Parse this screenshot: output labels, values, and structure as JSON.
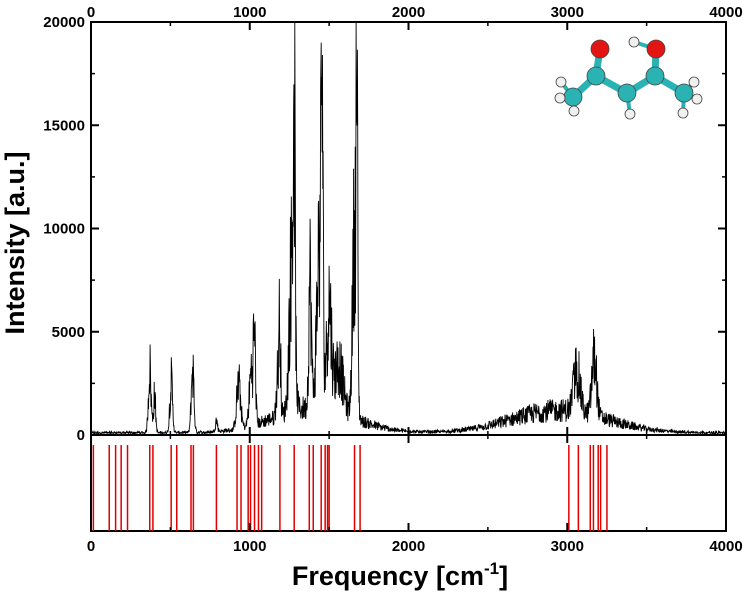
{
  "chart_data": {
    "type": "line",
    "xlabel": "Frequency [cm",
    "xlabel_sup": "-1",
    "xlabel_suffix": "]",
    "ylabel": "Intensity [a.u.]",
    "xlim": [
      0,
      4000
    ],
    "ylim": [
      0,
      20000
    ],
    "x_ticks": [
      "0",
      "1000",
      "2000",
      "3000",
      "4000"
    ],
    "x_tick_values": [
      0,
      1000,
      2000,
      3000,
      4000
    ],
    "y_ticks": [
      "0",
      "5000",
      "10000",
      "15000",
      "20000"
    ],
    "y_tick_values": [
      0,
      5000,
      10000,
      15000,
      20000
    ],
    "grid": false,
    "series": [
      {
        "color": "#000000",
        "peaks": [
          {
            "x": 370,
            "y": 4600,
            "width": 12
          },
          {
            "x": 400,
            "y": 2600,
            "width": 10
          },
          {
            "x": 505,
            "y": 3700,
            "width": 12
          },
          {
            "x": 640,
            "y": 4600,
            "width": 12
          },
          {
            "x": 790,
            "y": 800,
            "width": 10
          },
          {
            "x": 930,
            "y": 3200,
            "width": 18
          },
          {
            "x": 1010,
            "y": 3800,
            "width": 18
          },
          {
            "x": 1030,
            "y": 5500,
            "width": 10
          },
          {
            "x": 1180,
            "y": 3600,
            "width": 14
          },
          {
            "x": 1190,
            "y": 5700,
            "width": 6
          },
          {
            "x": 1265,
            "y": 11000,
            "width": 22
          },
          {
            "x": 1280,
            "y": 17100,
            "width": 8
          },
          {
            "x": 1380,
            "y": 9300,
            "width": 12
          },
          {
            "x": 1440,
            "y": 12000,
            "width": 24
          },
          {
            "x": 1455,
            "y": 16800,
            "width": 8
          },
          {
            "x": 1500,
            "y": 7500,
            "width": 20
          },
          {
            "x": 1560,
            "y": 3500,
            "width": 40
          },
          {
            "x": 1660,
            "y": 13500,
            "width": 18
          },
          {
            "x": 1675,
            "y": 17900,
            "width": 7
          },
          {
            "x": 3060,
            "y": 3000,
            "width": 30
          },
          {
            "x": 3170,
            "y": 4100,
            "width": 22
          }
        ],
        "broad_bands": [
          {
            "x": 2950,
            "y": 1600,
            "width": 420
          },
          {
            "x": 1400,
            "y": 1800,
            "width": 350
          }
        ]
      }
    ],
    "stick_spectrum": {
      "color": "#e00000",
      "x": [
        15,
        115,
        155,
        190,
        230,
        370,
        390,
        505,
        540,
        630,
        645,
        790,
        920,
        945,
        990,
        1005,
        1030,
        1055,
        1075,
        1190,
        1280,
        1375,
        1400,
        1450,
        1475,
        1490,
        1500,
        1660,
        1695,
        3010,
        3070,
        3145,
        3165,
        3195,
        3210,
        3250
      ]
    },
    "inset": "acetylacetone-molecule"
  },
  "colors": {
    "carbon": "#2bb3b3",
    "oxygen": "#e31414",
    "hydrogen": "#f0f0f0"
  }
}
